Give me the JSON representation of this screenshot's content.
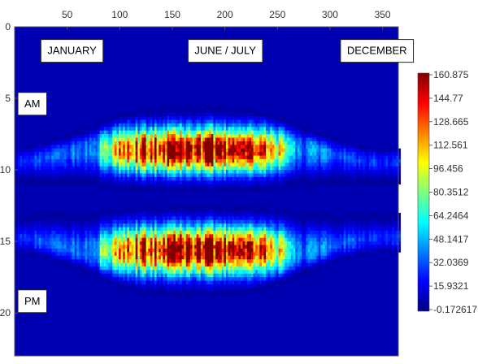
{
  "chart_data": {
    "type": "heatmap",
    "title": "",
    "xlabel": "",
    "ylabel": "",
    "x_range": [
      1,
      365
    ],
    "y_range": [
      0,
      24
    ],
    "xlim": [
      0,
      365
    ],
    "ylim": [
      23,
      0
    ],
    "x_ticks": [
      50,
      100,
      150,
      200,
      250,
      300,
      350
    ],
    "y_ticks": [
      0,
      5,
      10,
      15,
      20
    ],
    "colorscale": "jet",
    "value_range": [
      -0.172617,
      160.875
    ],
    "colorbar_labels": [
      "160.875",
      "144.77",
      "128.665",
      "112.561",
      "96.456",
      "80.3512",
      "64.2464",
      "48.1417",
      "32.0369",
      "15.9321",
      "-0.172617"
    ],
    "annotations": [
      {
        "text": "JANUARY",
        "x": 25,
        "y": 1
      },
      {
        "text": "JUNE / JULY",
        "x": 165,
        "y": 1
      },
      {
        "text": "DECEMBER",
        "x": 310,
        "y": 1
      },
      {
        "text": "AM",
        "x": 0,
        "y": 4.7
      },
      {
        "text": "PM",
        "x": 0,
        "y": 18.5
      }
    ],
    "description_values": {
      "morning_peak_hour": 8.5,
      "midday_dip_hour": 12,
      "afternoon_peak_hour": 15.5,
      "peak_day": 172,
      "max_value": 160.875
    }
  }
}
